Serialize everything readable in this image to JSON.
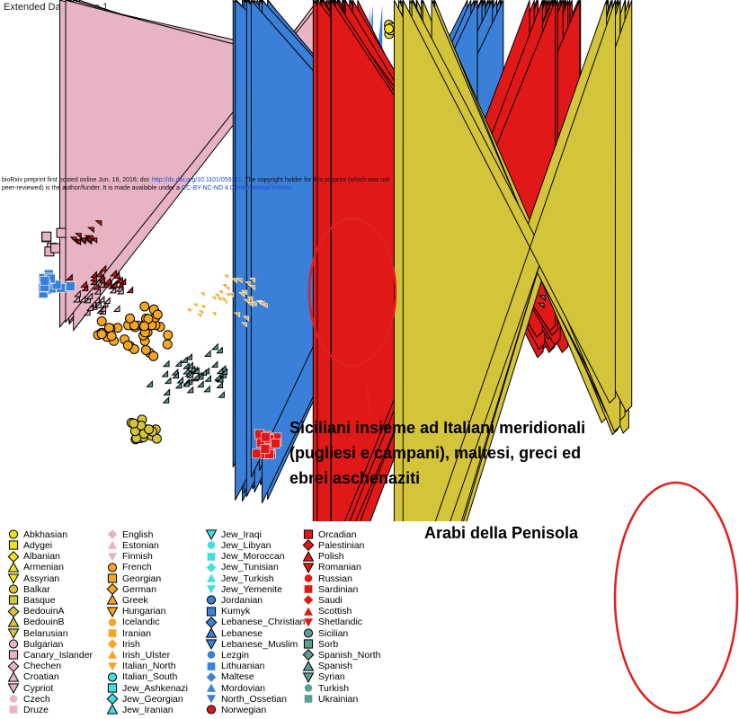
{
  "figure_title": "Extended Data Figure 1",
  "preprint_notice": {
    "line1_prefix": "bioRxiv preprint first posted online Jun. 16, 2016; doi: ",
    "doi_link": "http://dx.doi.org/10.1101/059311",
    "line1_suffix": ". The copyright holder for this preprint (which was not",
    "line2_prefix": "peer-reviewed) is the author/funder. It is made available under a ",
    "license_link": "CC-BY-NC-ND 4.0 International license",
    "line2_suffix": "."
  },
  "annotations": {
    "sicilian": {
      "line1": "Siciliani insieme ad Italiani meridionali",
      "line2": "(pugliesi e campani), maltesi, greci ed",
      "line3": "ebrei aschenaziti"
    },
    "arab": {
      "text": "Arabi della Penisola"
    }
  },
  "colors": {
    "yellow": "#f2e01c",
    "pink": "#e8b4c4",
    "orange": "#f5a623",
    "cyan": "#3ee0e0",
    "blue": "#3a7fd8",
    "red": "#e01818",
    "teal": "#5e9c98",
    "olive": "#d4c43a",
    "ellipse": "#e02020"
  },
  "chart_data": {
    "type": "scatter",
    "title": "",
    "xlabel": "",
    "ylabel": "",
    "axes_shown": false,
    "grid": false,
    "legend_position": "bottom",
    "series": [
      {
        "name": "Abkhasian",
        "color": "yellow",
        "shape": "circle"
      },
      {
        "name": "Adygei",
        "color": "yellow",
        "shape": "square"
      },
      {
        "name": "Albanian",
        "color": "yellow",
        "shape": "diamond"
      },
      {
        "name": "Armenian",
        "color": "yellow",
        "shape": "triangle-up"
      },
      {
        "name": "Assyrian",
        "color": "yellow",
        "shape": "triangle-down"
      },
      {
        "name": "Balkar",
        "color": "olive",
        "shape": "circle"
      },
      {
        "name": "Basque",
        "color": "olive",
        "shape": "square"
      },
      {
        "name": "BedouinA",
        "color": "olive",
        "shape": "diamond"
      },
      {
        "name": "BedouinB",
        "color": "olive",
        "shape": "triangle-up"
      },
      {
        "name": "Belarusian",
        "color": "olive",
        "shape": "triangle-down"
      },
      {
        "name": "Bulgarian",
        "color": "pink",
        "shape": "circle"
      },
      {
        "name": "Canary_Islander",
        "color": "pink",
        "shape": "square"
      },
      {
        "name": "Chechen",
        "color": "pink",
        "shape": "diamond"
      },
      {
        "name": "Croatian",
        "color": "pink",
        "shape": "triangle-up"
      },
      {
        "name": "Cypriot",
        "color": "pink",
        "shape": "triangle-down"
      },
      {
        "name": "Czech",
        "color": "pink",
        "shape": "circle-noborder"
      },
      {
        "name": "Druze",
        "color": "pink",
        "shape": "square-noborder"
      },
      {
        "name": "English",
        "color": "pink",
        "shape": "diamond-noborder"
      },
      {
        "name": "Estonian",
        "color": "pink",
        "shape": "triangle-up-noborder"
      },
      {
        "name": "Finnish",
        "color": "pink",
        "shape": "triangle-down-noborder"
      },
      {
        "name": "French",
        "color": "orange",
        "shape": "circle"
      },
      {
        "name": "Georgian",
        "color": "orange",
        "shape": "square"
      },
      {
        "name": "German",
        "color": "orange",
        "shape": "diamond"
      },
      {
        "name": "Greek",
        "color": "orange",
        "shape": "triangle-up"
      },
      {
        "name": "Hungarian",
        "color": "orange",
        "shape": "triangle-down"
      },
      {
        "name": "Icelandic",
        "color": "orange",
        "shape": "circle-noborder"
      },
      {
        "name": "Iranian",
        "color": "orange",
        "shape": "square-noborder"
      },
      {
        "name": "Irish",
        "color": "orange",
        "shape": "diamond-noborder"
      },
      {
        "name": "Irish_Ulster",
        "color": "orange",
        "shape": "triangle-up-noborder"
      },
      {
        "name": "Italian_North",
        "color": "orange",
        "shape": "triangle-down-noborder"
      },
      {
        "name": "Italian_South",
        "color": "cyan",
        "shape": "circle"
      },
      {
        "name": "Jew_Ashkenazi",
        "color": "cyan",
        "shape": "square"
      },
      {
        "name": "Jew_Georgian",
        "color": "cyan",
        "shape": "diamond"
      },
      {
        "name": "Jew_Iranian",
        "color": "cyan",
        "shape": "triangle-up"
      },
      {
        "name": "Jew_Iraqi",
        "color": "cyan",
        "shape": "triangle-down"
      },
      {
        "name": "Jew_Libyan",
        "color": "cyan",
        "shape": "circle-noborder"
      },
      {
        "name": "Jew_Moroccan",
        "color": "cyan",
        "shape": "square-noborder"
      },
      {
        "name": "Jew_Tunisian",
        "color": "cyan",
        "shape": "diamond-noborder"
      },
      {
        "name": "Jew_Turkish",
        "color": "cyan",
        "shape": "triangle-up-noborder"
      },
      {
        "name": "Jew_Yemenite",
        "color": "cyan",
        "shape": "triangle-down-noborder"
      },
      {
        "name": "Jordanian",
        "color": "blue",
        "shape": "circle"
      },
      {
        "name": "Kumyk",
        "color": "blue",
        "shape": "square"
      },
      {
        "name": "Lebanese_Christian",
        "color": "blue",
        "shape": "diamond"
      },
      {
        "name": "Lebanese",
        "color": "blue",
        "shape": "triangle-up"
      },
      {
        "name": "Lebanese_Muslim",
        "color": "blue",
        "shape": "triangle-down"
      },
      {
        "name": "Lezgin",
        "color": "blue",
        "shape": "circle-noborder"
      },
      {
        "name": "Lithuanian",
        "color": "blue",
        "shape": "square-noborder"
      },
      {
        "name": "Maltese",
        "color": "blue",
        "shape": "diamond-noborder"
      },
      {
        "name": "Mordovian",
        "color": "blue",
        "shape": "triangle-up-noborder"
      },
      {
        "name": "North_Ossetian",
        "color": "blue",
        "shape": "triangle-down-noborder"
      },
      {
        "name": "Norwegian",
        "color": "red",
        "shape": "circle"
      },
      {
        "name": "Orcadian",
        "color": "red",
        "shape": "square"
      },
      {
        "name": "Palestinian",
        "color": "red",
        "shape": "diamond"
      },
      {
        "name": "Polish",
        "color": "red",
        "shape": "triangle-up"
      },
      {
        "name": "Romanian",
        "color": "red",
        "shape": "triangle-down"
      },
      {
        "name": "Russian",
        "color": "red",
        "shape": "circle-noborder"
      },
      {
        "name": "Sardinian",
        "color": "red",
        "shape": "square-noborder"
      },
      {
        "name": "Saudi",
        "color": "red",
        "shape": "diamond-noborder"
      },
      {
        "name": "Scottish",
        "color": "red",
        "shape": "triangle-up-noborder"
      },
      {
        "name": "Shetlandic",
        "color": "red",
        "shape": "triangle-down-noborder"
      },
      {
        "name": "Sicilian",
        "color": "teal",
        "shape": "circle"
      },
      {
        "name": "Sorb",
        "color": "teal",
        "shape": "square"
      },
      {
        "name": "Spanish_North",
        "color": "teal",
        "shape": "diamond"
      },
      {
        "name": "Spanish",
        "color": "teal",
        "shape": "triangle-up"
      },
      {
        "name": "Syrian",
        "color": "teal",
        "shape": "triangle-down"
      },
      {
        "name": "Turkish",
        "color": "teal",
        "shape": "circle-noborder"
      },
      {
        "name": "Ukrainian",
        "color": "teal",
        "shape": "square-noborder"
      }
    ],
    "point_clusters": [
      {
        "group": "Abkhasian",
        "center": [
          432,
          30
        ],
        "spread": [
          14,
          14
        ],
        "n": 5
      },
      {
        "group": "Adygei",
        "center": [
          430,
          82
        ],
        "spread": [
          18,
          14
        ],
        "n": 9
      },
      {
        "group": "Chechen",
        "center": [
          360,
          75
        ],
        "spread": [
          22,
          18
        ],
        "n": 9
      },
      {
        "group": "Mordovian",
        "center": [
          392,
          78
        ],
        "spread": [
          30,
          22
        ],
        "n": 12
      },
      {
        "group": "Georgian",
        "center": [
          490,
          115
        ],
        "spread": [
          36,
          35
        ],
        "n": 38
      },
      {
        "group": "Turkish",
        "center": [
          415,
          150
        ],
        "spread": [
          60,
          48
        ],
        "n": 38
      },
      {
        "group": "Jew_Yemenite",
        "center": [
          495,
          182
        ],
        "spread": [
          26,
          20
        ],
        "n": 16
      },
      {
        "group": "Armenian",
        "center": [
          520,
          205
        ],
        "spread": [
          28,
          18
        ],
        "n": 10
      },
      {
        "group": "Lebanese_Muslim",
        "center": [
          530,
          215
        ],
        "spread": [
          30,
          22
        ],
        "n": 14
      },
      {
        "group": "Druze",
        "center": [
          542,
          250
        ],
        "spread": [
          28,
          22
        ],
        "n": 14
      },
      {
        "group": "Lebanese_Christian",
        "center": [
          540,
          280
        ],
        "spread": [
          34,
          34
        ],
        "n": 24
      },
      {
        "group": "Romanian",
        "center": [
          100,
          268
        ],
        "spread": [
          26,
          20
        ],
        "n": 14
      },
      {
        "group": "Canary_Islander",
        "center": [
          60,
          272
        ],
        "spread": [
          24,
          16
        ],
        "n": 6
      },
      {
        "group": "Lithuanian",
        "center": [
          58,
          315
        ],
        "spread": [
          26,
          20
        ],
        "n": 16
      },
      {
        "group": "Polish",
        "center": [
          115,
          315
        ],
        "spread": [
          40,
          22
        ],
        "n": 24
      },
      {
        "group": "Croatian",
        "center": [
          115,
          338
        ],
        "spread": [
          38,
          26
        ],
        "n": 24
      },
      {
        "group": "French",
        "center": [
          150,
          368
        ],
        "spread": [
          60,
          38
        ],
        "n": 40
      },
      {
        "group": "Italian_North",
        "center": [
          265,
          335
        ],
        "spread": [
          65,
          40
        ],
        "n": 36
      },
      {
        "group": "Spanish",
        "center": [
          218,
          418
        ],
        "spread": [
          60,
          35
        ],
        "n": 50
      },
      {
        "group": "Balkar",
        "center": [
          158,
          478
        ],
        "spread": [
          24,
          22
        ],
        "n": 18
      },
      {
        "group": "Sardinian",
        "center": [
          296,
          492
        ],
        "spread": [
          22,
          18
        ],
        "n": 20
      },
      {
        "group": "Sicilian",
        "center": [
          378,
          330
        ],
        "spread": [
          32,
          28
        ],
        "n": 14
      },
      {
        "group": "Maltese",
        "center": [
          410,
          378
        ],
        "spread": [
          22,
          20
        ],
        "n": 6
      },
      {
        "group": "Jew_Iraqi",
        "center": [
          455,
          345
        ],
        "spread": [
          40,
          30
        ],
        "n": 12
      },
      {
        "group": "Jew_Ashkenazi",
        "center": [
          520,
          395
        ],
        "spread": [
          50,
          35
        ],
        "n": 16
      },
      {
        "group": "Palestinian",
        "center": [
          618,
          372
        ],
        "spread": [
          44,
          38
        ],
        "n": 40
      },
      {
        "group": "Syrian",
        "center": [
          620,
          330
        ],
        "spread": [
          60,
          36
        ],
        "n": 10
      },
      {
        "group": "BedouinA",
        "center": [
          688,
          455
        ],
        "spread": [
          36,
          40
        ],
        "n": 16
      },
      {
        "group": "BedouinB",
        "center": [
          765,
          675
        ],
        "spread": [
          46,
          110
        ],
        "n": 26
      }
    ]
  }
}
